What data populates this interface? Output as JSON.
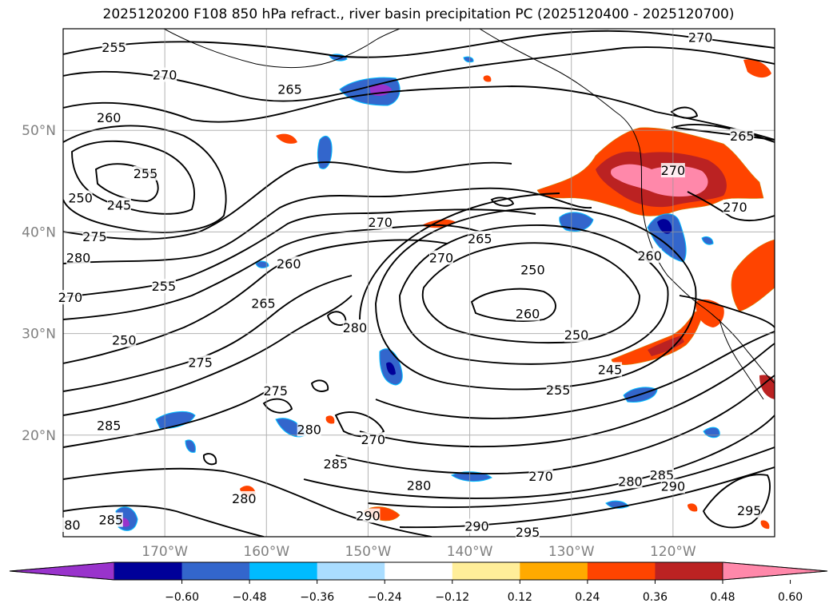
{
  "title": "2025120200 F108 850 hPa refract., river basin precipitation PC (2025120400 - 2025120700)",
  "map": {
    "lon_range": [
      -180,
      -110
    ],
    "lat_range": [
      10,
      60
    ],
    "lat_ticks": [
      {
        "value": 50,
        "label": "50°N"
      },
      {
        "value": 40,
        "label": "40°N"
      },
      {
        "value": 30,
        "label": "30°N"
      },
      {
        "value": 20,
        "label": "20°N"
      }
    ],
    "lon_ticks": [
      {
        "value": -170,
        "label": "170°W"
      },
      {
        "value": -160,
        "label": "160°W"
      },
      {
        "value": -150,
        "label": "150°W"
      },
      {
        "value": -140,
        "label": "140°W"
      },
      {
        "value": -130,
        "label": "130°W"
      },
      {
        "value": -120,
        "label": "120°W"
      }
    ],
    "grid": true,
    "contour_labels": [
      {
        "text": "255",
        "lon": -175.0,
        "lat": 58.1
      },
      {
        "text": "270",
        "lon": -117.3,
        "lat": 59.1
      },
      {
        "text": "270",
        "lon": -170.0,
        "lat": 55.4
      },
      {
        "text": "265",
        "lon": -157.7,
        "lat": 54.0
      },
      {
        "text": "260",
        "lon": -175.5,
        "lat": 51.2
      },
      {
        "text": "265",
        "lon": -113.2,
        "lat": 49.4
      },
      {
        "text": "255",
        "lon": -171.9,
        "lat": 45.7
      },
      {
        "text": "250",
        "lon": -178.3,
        "lat": 43.3
      },
      {
        "text": "245",
        "lon": -174.5,
        "lat": 42.6
      },
      {
        "text": "270",
        "lon": -120.0,
        "lat": 46.0
      },
      {
        "text": "270",
        "lon": -113.9,
        "lat": 42.4
      },
      {
        "text": "275",
        "lon": -176.9,
        "lat": 39.5
      },
      {
        "text": "280",
        "lon": -178.5,
        "lat": 37.4
      },
      {
        "text": "270",
        "lon": -148.8,
        "lat": 40.9
      },
      {
        "text": "265",
        "lon": -139.0,
        "lat": 39.3
      },
      {
        "text": "270",
        "lon": -142.8,
        "lat": 37.4
      },
      {
        "text": "260",
        "lon": -122.3,
        "lat": 37.6
      },
      {
        "text": "260",
        "lon": -157.8,
        "lat": 36.8
      },
      {
        "text": "250",
        "lon": -133.8,
        "lat": 36.2
      },
      {
        "text": "255",
        "lon": -170.1,
        "lat": 34.6
      },
      {
        "text": "270",
        "lon": -179.3,
        "lat": 33.5
      },
      {
        "text": "265",
        "lon": -160.3,
        "lat": 32.9
      },
      {
        "text": "260",
        "lon": -134.3,
        "lat": 31.9
      },
      {
        "text": "280",
        "lon": -151.3,
        "lat": 30.5
      },
      {
        "text": "250",
        "lon": -129.5,
        "lat": 29.8
      },
      {
        "text": "250",
        "lon": -174.0,
        "lat": 29.3
      },
      {
        "text": "275",
        "lon": -166.5,
        "lat": 27.1
      },
      {
        "text": "245",
        "lon": -126.2,
        "lat": 26.4
      },
      {
        "text": "275",
        "lon": -159.1,
        "lat": 24.3
      },
      {
        "text": "255",
        "lon": -131.3,
        "lat": 24.4
      },
      {
        "text": "285",
        "lon": -175.5,
        "lat": 20.9
      },
      {
        "text": "280",
        "lon": -155.8,
        "lat": 20.5
      },
      {
        "text": "270",
        "lon": -149.5,
        "lat": 19.5
      },
      {
        "text": "285",
        "lon": -153.2,
        "lat": 17.1
      },
      {
        "text": "280",
        "lon": -145.0,
        "lat": 15.0
      },
      {
        "text": "270",
        "lon": -133.0,
        "lat": 15.9
      },
      {
        "text": "280",
        "lon": -124.2,
        "lat": 15.4
      },
      {
        "text": "285",
        "lon": -121.1,
        "lat": 16.0
      },
      {
        "text": "290",
        "lon": -120.0,
        "lat": 14.9
      },
      {
        "text": "280",
        "lon": -162.2,
        "lat": 13.7
      },
      {
        "text": "290",
        "lon": -150.0,
        "lat": 12.0
      },
      {
        "text": "290",
        "lon": -139.3,
        "lat": 11.0
      },
      {
        "text": "295",
        "lon": -134.3,
        "lat": 10.4
      },
      {
        "text": "285",
        "lon": -175.3,
        "lat": 11.6
      },
      {
        "text": "80",
        "lon": -179.1,
        "lat": 11.1
      },
      {
        "text": "295",
        "lon": -112.5,
        "lat": 12.5
      }
    ]
  },
  "colorbar": {
    "colors": [
      "#9933cc",
      "#000099",
      "#3366cc",
      "#00bbff",
      "#aaddff",
      "#ffffff",
      "#ffee99",
      "#ffaa00",
      "#ff4400",
      "#bb2222",
      "#ff88aa"
    ],
    "ticks": [
      "−0.60",
      "−0.48",
      "−0.36",
      "−0.24",
      "−0.12",
      "0.12",
      "0.24",
      "0.36",
      "0.48",
      "0.60"
    ]
  }
}
